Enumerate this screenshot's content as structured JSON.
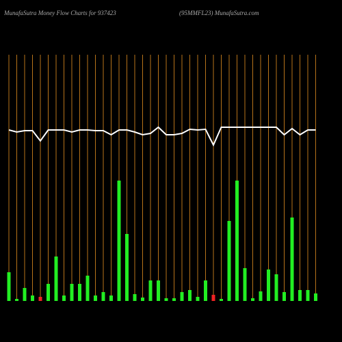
{
  "chart_data": {
    "type": "bar",
    "title": "MunafaSutra  Money Flow  Charts for 937423",
    "subtitle": "(95MMFL23) MunafaSutra.com",
    "categories": [
      null,
      null,
      null,
      null,
      null,
      null,
      null,
      null,
      null,
      null,
      null,
      null,
      null,
      null,
      null,
      null,
      null,
      null,
      null,
      null,
      null,
      null,
      null,
      null,
      null,
      null,
      null,
      null,
      null,
      null,
      null,
      null,
      null,
      null,
      null,
      null,
      null,
      null,
      null,
      null
    ],
    "ylim": [
      0,
      360
    ],
    "series": [
      {
        "type": "bar",
        "values": [
          42,
          3,
          19,
          8,
          6,
          25,
          65,
          8,
          25,
          25,
          37,
          8,
          13,
          8,
          176,
          98,
          10,
          5,
          30,
          30,
          4,
          4,
          13,
          16,
          6,
          30,
          9,
          3,
          117,
          176,
          48,
          4,
          14,
          46,
          39,
          13,
          122,
          16,
          16,
          11
        ],
        "colors": [
          "#22ee22",
          "#22ee22",
          "#22ee22",
          "#22ee22",
          "#ee2222",
          "#22ee22",
          "#22ee22",
          "#22ee22",
          "#22ee22",
          "#22ee22",
          "#22ee22",
          "#22ee22",
          "#22ee22",
          "#22ee22",
          "#22ee22",
          "#22ee22",
          "#22ee22",
          "#22ee22",
          "#22ee22",
          "#22ee22",
          "#22ee22",
          "#22ee22",
          "#22ee22",
          "#22ee22",
          "#22ee22",
          "#22ee22",
          "#ee2222",
          "#22ee22",
          "#22ee22",
          "#22ee22",
          "#22ee22",
          "#22ee22",
          "#22ee22",
          "#22ee22",
          "#22ee22",
          "#22ee22",
          "#22ee22",
          "#22ee22",
          "#22ee22",
          "#22ee22"
        ]
      },
      {
        "type": "line",
        "color": "#ffffff",
        "values": [
          250,
          247,
          249,
          249,
          234,
          250,
          250,
          250,
          247,
          250,
          250,
          249,
          249,
          243,
          250,
          250,
          247,
          243,
          245,
          254,
          243,
          243,
          245,
          251,
          250,
          251,
          228,
          254,
          254,
          254,
          254,
          254,
          254,
          254,
          254,
          243,
          252,
          243,
          250,
          250
        ]
      }
    ],
    "grid_color": "#b8741a"
  }
}
